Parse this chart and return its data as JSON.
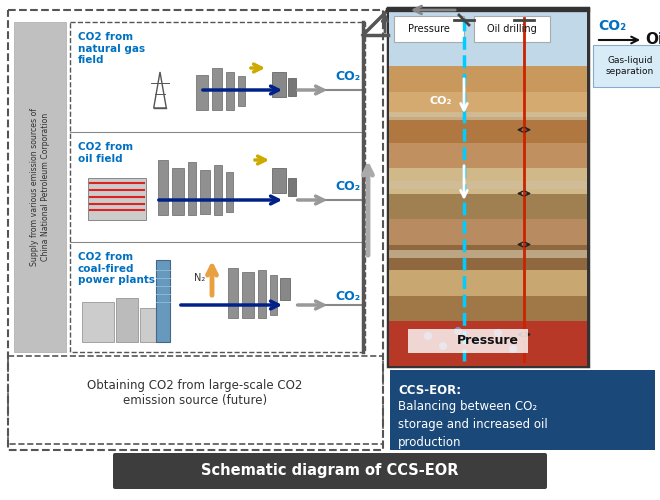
{
  "title": "Schematic diagram of CCS-EOR",
  "title_bg": "#3d3d3d",
  "title_color": "#ffffff",
  "bg_color": "#ffffff",
  "co2_blue": "#0070c0",
  "left_panel": {
    "source1_label": "CO2 from\nnatural gas\nfield",
    "source2_label": "CO2 from\noil field",
    "source3_label": "CO2 from\ncoal-fired\npower plants",
    "gray_label": "Supply from various emission sources of\nChina National Petroleum Corporation",
    "future_text": "Obtaining CO2 from large-scale CO2\nemission source (future)"
  },
  "right_panel": {
    "layer_colors": [
      "#c8985c",
      "#d4aa70",
      "#b07840",
      "#c09060",
      "#d0b888",
      "#a08050",
      "#b88c60",
      "#906840",
      "#c8a870",
      "#a07848"
    ],
    "reservoir_color": "#b83828",
    "sky_color": "#c0d8e8",
    "co2_well_color": "#00ccff",
    "oil_well_color": "#cc2200",
    "pressure_label": "Pressure",
    "top_pressure": "Pressure",
    "top_drilling": "Oil drilling",
    "co2_label": "CO₂",
    "oil_label": "Oil",
    "gas_liquid": "Gas-liquid\nseparation",
    "bottom_pressure": "Pressure",
    "co2_inject": "CO₂"
  },
  "info_box": {
    "bg_color": "#1a4878",
    "text_color": "#ffffff",
    "title": "CCS-EOR:",
    "body": "Balancing between CO₂\nstorage and increased oil\nproduction"
  }
}
